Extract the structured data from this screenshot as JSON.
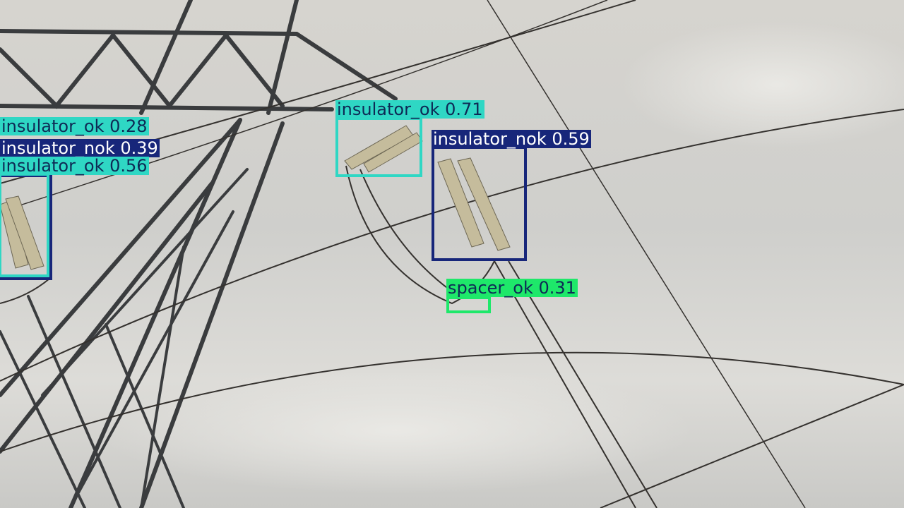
{
  "colors": {
    "insulator_ok": "#2fd7c4",
    "insulator_nok": "#17267a",
    "spacer_ok": "#1ee86a"
  },
  "detections": [
    {
      "class": "insulator_ok",
      "label": "insulator_ok 0.28",
      "confidence": 0.28
    },
    {
      "class": "insulator_nok",
      "label": "insulator_nok 0.39",
      "confidence": 0.39
    },
    {
      "class": "insulator_ok",
      "label": "insulator_ok 0.56",
      "confidence": 0.56
    },
    {
      "class": "insulator_ok",
      "label": "insulator_ok 0.71",
      "confidence": 0.71
    },
    {
      "class": "insulator_nok",
      "label": "insulator_nok 0.59",
      "confidence": 0.59
    },
    {
      "class": "spacer_ok",
      "label": "spacer_ok 0.31",
      "confidence": 0.31
    }
  ]
}
